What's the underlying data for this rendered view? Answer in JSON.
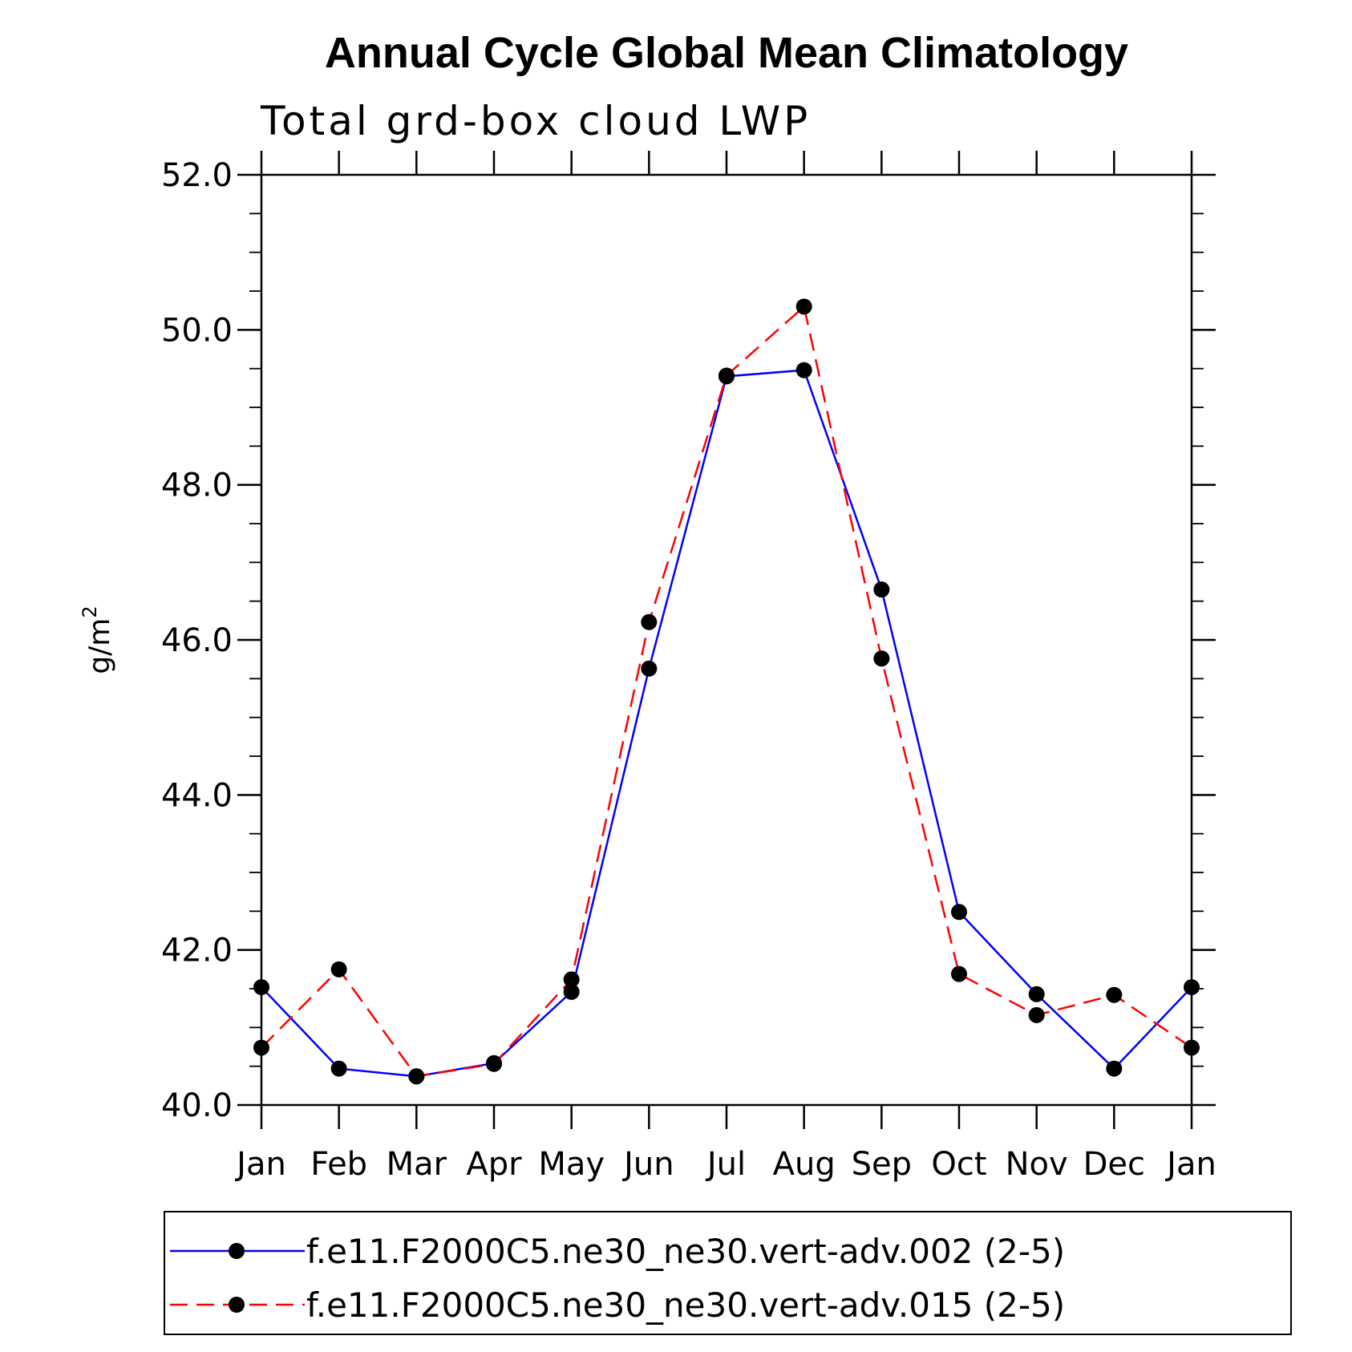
{
  "chart_data": {
    "type": "line",
    "title": "Annual Cycle Global Mean Climatology",
    "subtitle": "Total grd-box cloud LWP",
    "ylabel": "g/m",
    "ylabel_sup": "2",
    "xlabel": "",
    "ylim": [
      40.0,
      52.0
    ],
    "yticks": [
      "40.0",
      "42.0",
      "44.0",
      "46.0",
      "48.0",
      "50.0",
      "52.0"
    ],
    "categories": [
      "Jan",
      "Feb",
      "Mar",
      "Apr",
      "May",
      "Jun",
      "Jul",
      "Aug",
      "Sep",
      "Oct",
      "Nov",
      "Dec",
      "Jan"
    ],
    "series": [
      {
        "name": "f.e11.F2000C5.ne30_ne30.vert-adv.002 (2-5)",
        "color": "#0000ff",
        "dash": "solid",
        "values": [
          41.52,
          40.47,
          40.37,
          40.54,
          41.46,
          45.63,
          49.4,
          49.48,
          46.65,
          42.49,
          41.43,
          40.47,
          41.52
        ]
      },
      {
        "name": "f.e11.F2000C5.ne30_ne30.vert-adv.015 (2-5)",
        "color": "#ff0000",
        "dash": "dashed",
        "values": [
          40.74,
          41.75,
          40.37,
          40.53,
          41.62,
          46.23,
          49.41,
          50.3,
          45.76,
          41.69,
          41.16,
          41.42,
          40.74
        ]
      }
    ],
    "grid": false,
    "legend_position": "bottom"
  }
}
